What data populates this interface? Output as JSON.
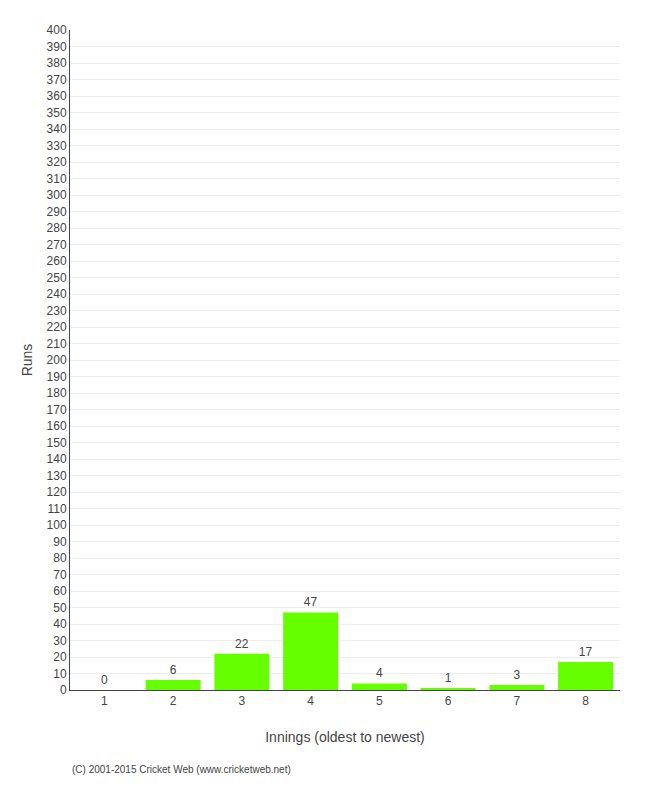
{
  "chart_data": {
    "type": "bar",
    "categories": [
      "1",
      "2",
      "3",
      "4",
      "5",
      "6",
      "7",
      "8"
    ],
    "values": [
      0,
      6,
      22,
      47,
      4,
      1,
      3,
      17
    ],
    "color": "#66ff00",
    "xlabel": "Innings (oldest to newest)",
    "ylabel": "Runs",
    "ylim": [
      0,
      400
    ],
    "yticks": [
      0,
      10,
      20,
      30,
      40,
      50,
      60,
      70,
      80,
      90,
      100,
      110,
      120,
      130,
      140,
      150,
      160,
      170,
      180,
      190,
      200,
      210,
      220,
      230,
      240,
      250,
      260,
      270,
      280,
      290,
      300,
      310,
      320,
      330,
      340,
      350,
      360,
      370,
      380,
      390,
      400
    ],
    "grid": true,
    "data_labels": true,
    "annotations": [
      "(C) 2001-2015 Cricket Web (www.cricketweb.net)"
    ]
  }
}
